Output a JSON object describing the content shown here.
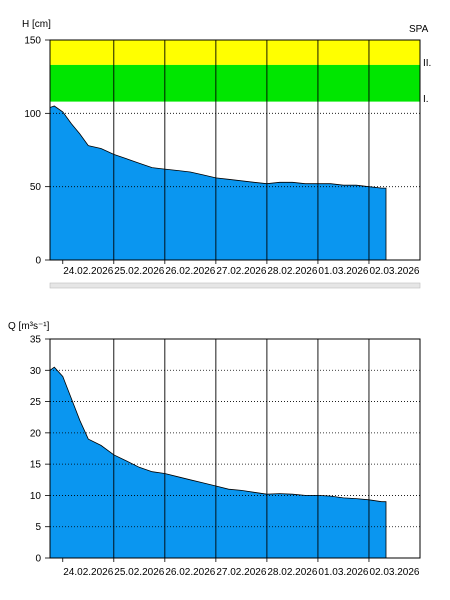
{
  "station_code": "SPA",
  "colors": {
    "area": "#0a96f0",
    "band_ii": "#ffff00",
    "band_i": "#00e600",
    "grid": "#000000",
    "scrollbar": "#e6e6e6"
  },
  "chart_data": [
    {
      "id": "water-level",
      "type": "area",
      "ylabel": "H [cm]",
      "ylim": [
        0,
        150
      ],
      "yticks": [
        0,
        50,
        100,
        150
      ],
      "grid": true,
      "x_tick_labels": [
        "24.02.2026",
        "25.02.2026",
        "26.02.2026",
        "27.02.2026",
        "28.02.2026",
        "01.03.2026",
        "02.03.2026"
      ],
      "x_start": "2026-02-23T18:00",
      "x_end": "2026-03-03T00:00",
      "bands": [
        {
          "label": "II.",
          "from": 133,
          "to": 150,
          "color": "#ffff00"
        },
        {
          "label": "I.",
          "from": 108,
          "to": 133,
          "color": "#00e600"
        }
      ],
      "series": [
        {
          "x": [
            "2026-02-23T18:00",
            "2026-02-23T20:00",
            "2026-02-24T00:00",
            "2026-02-24T04:00",
            "2026-02-24T08:00",
            "2026-02-24T12:00",
            "2026-02-24T18:00",
            "2026-02-25T00:00",
            "2026-02-25T06:00",
            "2026-02-25T12:00",
            "2026-02-25T18:00",
            "2026-02-26T00:00",
            "2026-02-26T06:00",
            "2026-02-26T12:00",
            "2026-02-26T18:00",
            "2026-02-27T00:00",
            "2026-02-27T06:00",
            "2026-02-27T12:00",
            "2026-02-27T18:00",
            "2026-02-28T00:00",
            "2026-02-28T06:00",
            "2026-02-28T12:00",
            "2026-02-28T18:00",
            "2026-03-01T00:00",
            "2026-03-01T06:00",
            "2026-03-01T12:00",
            "2026-03-01T18:00",
            "2026-03-02T00:00",
            "2026-03-02T06:00",
            "2026-03-02T08:00"
          ],
          "values": [
            104,
            105,
            101,
            93,
            86,
            78,
            76,
            72,
            69,
            66,
            63,
            62,
            61,
            60,
            58,
            56,
            55,
            54,
            53,
            52,
            53,
            53,
            52,
            52,
            52,
            51,
            51,
            50,
            49,
            49
          ]
        }
      ]
    },
    {
      "id": "discharge",
      "type": "area",
      "ylabel": "Q [m³s⁻¹]",
      "ylim": [
        0,
        35
      ],
      "yticks": [
        0,
        5,
        10,
        15,
        20,
        25,
        30,
        35
      ],
      "grid": true,
      "x_tick_labels": [
        "24.02.2026",
        "25.02.2026",
        "26.02.2026",
        "27.02.2026",
        "28.02.2026",
        "01.03.2026",
        "02.03.2026"
      ],
      "x_start": "2026-02-23T18:00",
      "x_end": "2026-03-03T00:00",
      "series": [
        {
          "x": [
            "2026-02-23T18:00",
            "2026-02-23T20:00",
            "2026-02-24T00:00",
            "2026-02-24T04:00",
            "2026-02-24T08:00",
            "2026-02-24T12:00",
            "2026-02-24T18:00",
            "2026-02-25T00:00",
            "2026-02-25T06:00",
            "2026-02-25T12:00",
            "2026-02-25T18:00",
            "2026-02-26T00:00",
            "2026-02-26T06:00",
            "2026-02-26T12:00",
            "2026-02-26T18:00",
            "2026-02-27T00:00",
            "2026-02-27T06:00",
            "2026-02-27T12:00",
            "2026-02-27T18:00",
            "2026-02-28T00:00",
            "2026-02-28T06:00",
            "2026-02-28T12:00",
            "2026-02-28T18:00",
            "2026-03-01T00:00",
            "2026-03-01T06:00",
            "2026-03-01T12:00",
            "2026-03-01T18:00",
            "2026-03-02T00:00",
            "2026-03-02T06:00",
            "2026-03-02T08:00"
          ],
          "values": [
            30.0,
            30.5,
            29.0,
            25.5,
            22.0,
            19.0,
            18.0,
            16.5,
            15.5,
            14.5,
            13.8,
            13.5,
            13.0,
            12.5,
            12.0,
            11.5,
            11.0,
            10.8,
            10.5,
            10.2,
            10.3,
            10.2,
            10.0,
            10.0,
            9.9,
            9.6,
            9.5,
            9.3,
            9.0,
            9.0
          ]
        }
      ]
    }
  ]
}
